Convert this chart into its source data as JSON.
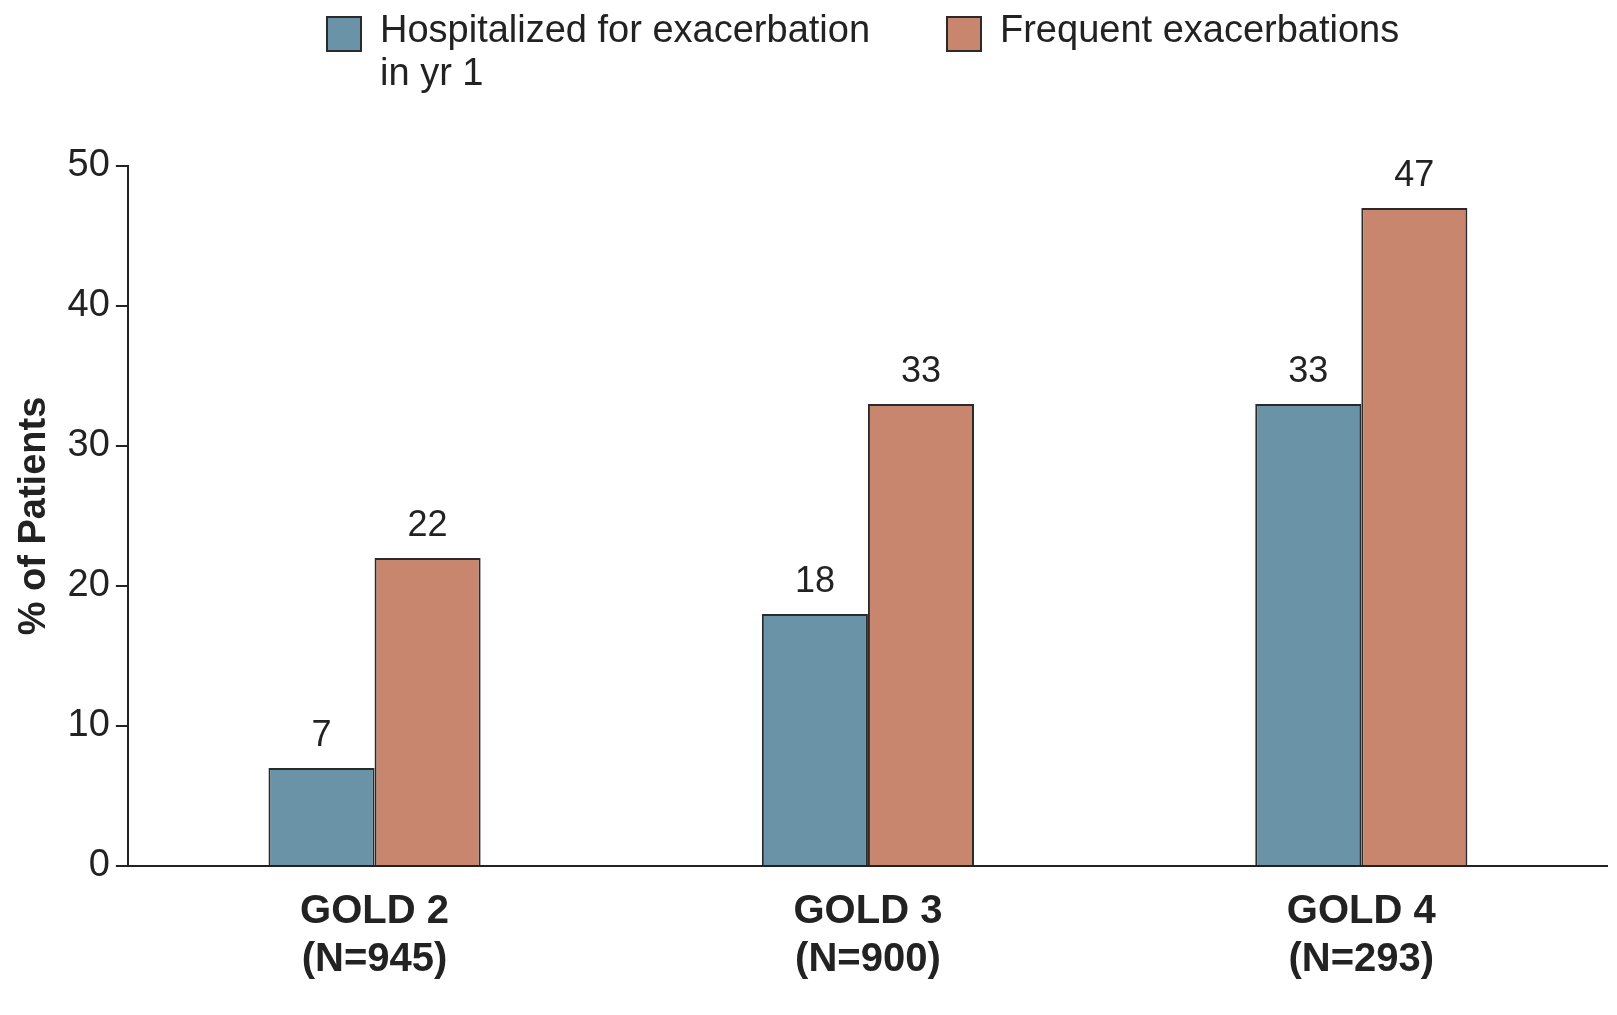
{
  "chart_data": {
    "type": "bar",
    "ylabel": "% of Patients",
    "categories": [
      "GOLD 2\n(N=945)",
      "GOLD 3\n(N=900)",
      "GOLD 4\n(N=293)"
    ],
    "series": [
      {
        "name": "Hospitalized for exacerbation in yr 1",
        "color": "#6a93a8",
        "values": [
          7,
          18,
          33
        ]
      },
      {
        "name": "Frequent exacerbations",
        "color": "#c9866f",
        "values": [
          22,
          33,
          47
        ]
      }
    ],
    "ylim": [
      0,
      50
    ],
    "yticks": [
      0,
      10,
      20,
      30,
      40,
      50
    ],
    "grid": false,
    "legend": "top",
    "data_labels": true
  }
}
